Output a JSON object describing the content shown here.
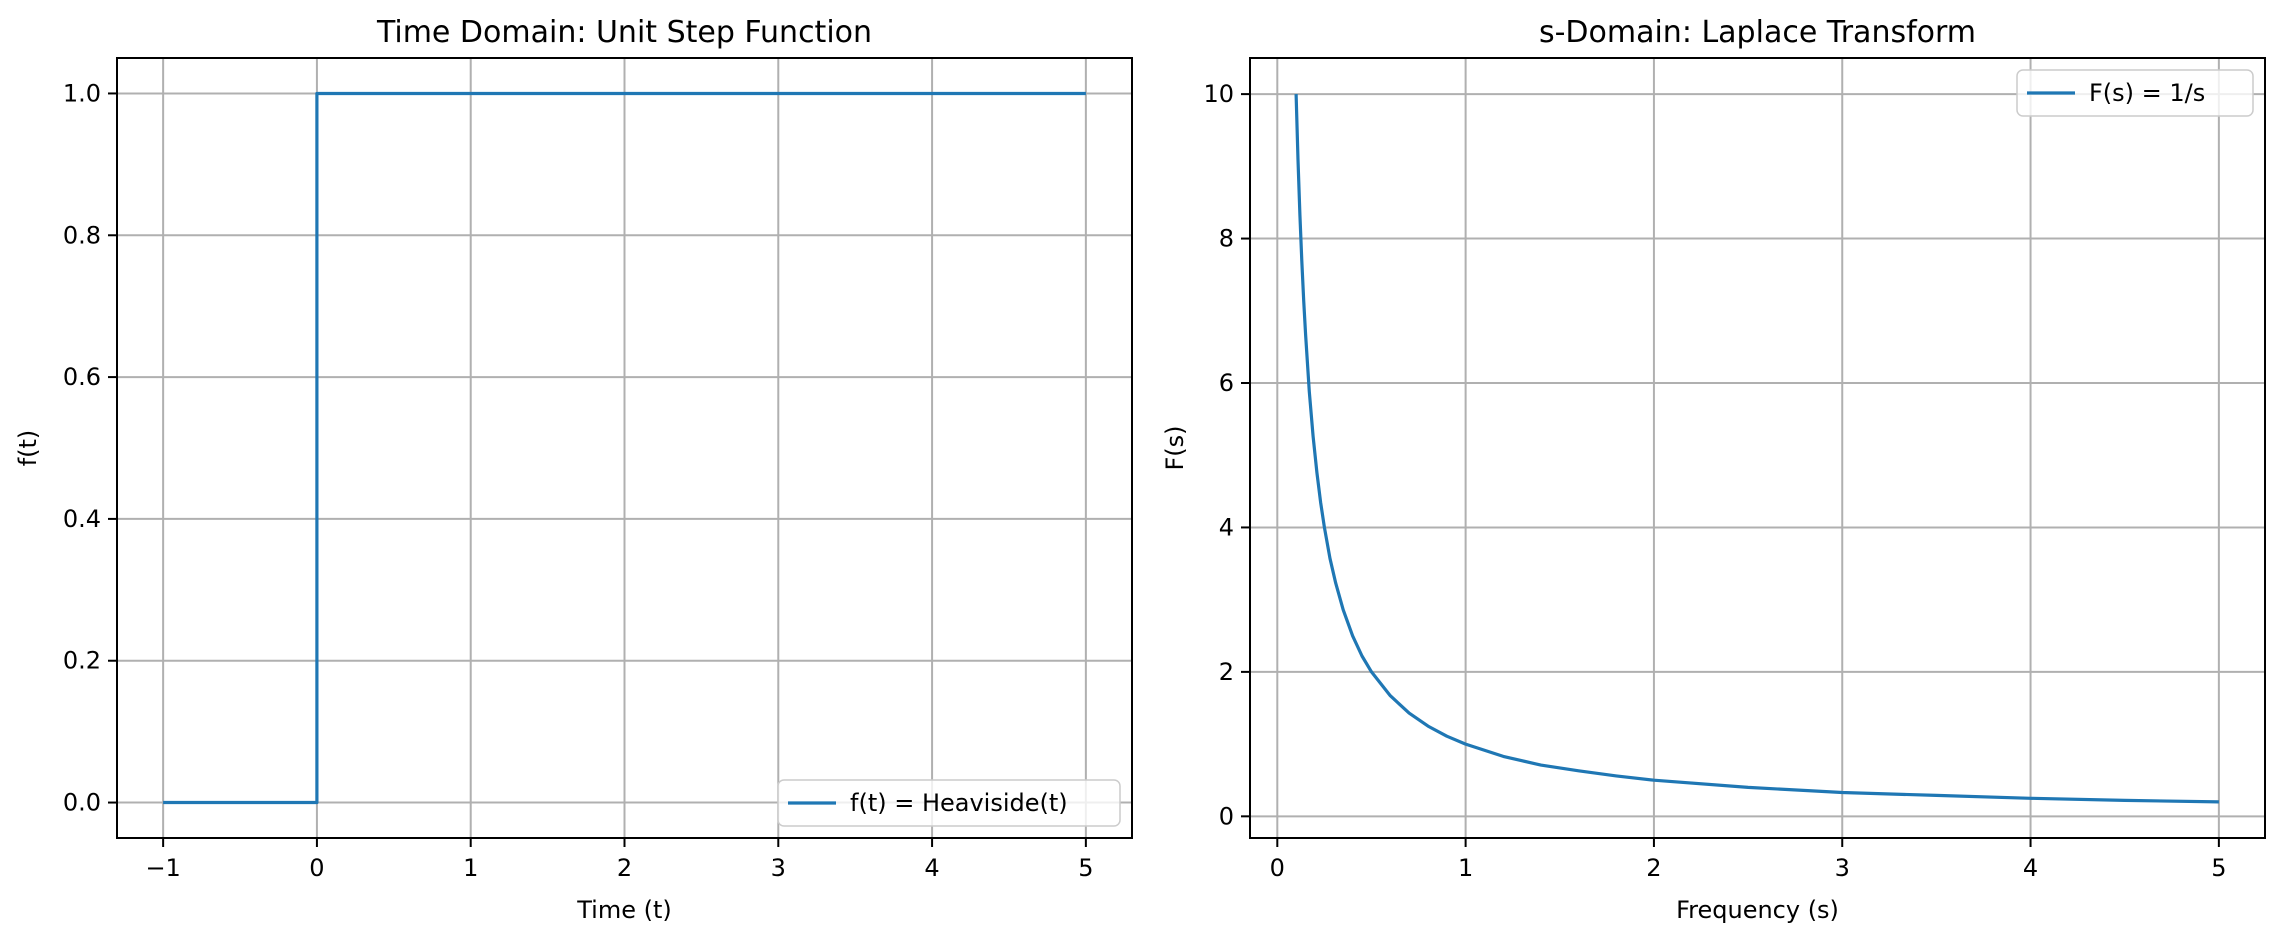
{
  "figure": {
    "background": "#ffffff"
  },
  "chart_data": [
    {
      "type": "line",
      "title": "Time Domain: Unit Step Function",
      "xlabel": "Time (t)",
      "ylabel": "f(t)",
      "xlim": [
        -1.3,
        5.3
      ],
      "ylim": [
        -0.05,
        1.05
      ],
      "xticks": [
        -1,
        0,
        1,
        2,
        3,
        4,
        5
      ],
      "xtick_labels": [
        "−1",
        "0",
        "1",
        "2",
        "3",
        "4",
        "5"
      ],
      "yticks": [
        0.0,
        0.2,
        0.4,
        0.6,
        0.8,
        1.0
      ],
      "ytick_labels": [
        "0.0",
        "0.2",
        "0.4",
        "0.6",
        "0.8",
        "1.0"
      ],
      "grid": true,
      "legend_position": "lower-right",
      "series": [
        {
          "name": "f(t) = Heaviside(t)",
          "color": "#1f77b4",
          "x": [
            -1,
            0,
            0,
            5
          ],
          "y": [
            0,
            0,
            1,
            1
          ]
        }
      ]
    },
    {
      "type": "line",
      "title": "s-Domain: Laplace Transform",
      "xlabel": "Frequency (s)",
      "ylabel": "F(s)",
      "xlim": [
        -0.145,
        5.245
      ],
      "ylim": [
        -0.3,
        10.5
      ],
      "xticks": [
        0,
        1,
        2,
        3,
        4,
        5
      ],
      "xtick_labels": [
        "0",
        "1",
        "2",
        "3",
        "4",
        "5"
      ],
      "yticks": [
        0,
        2,
        4,
        6,
        8,
        10
      ],
      "ytick_labels": [
        "0",
        "2",
        "4",
        "6",
        "8",
        "10"
      ],
      "grid": true,
      "legend_position": "upper-right",
      "series": [
        {
          "name": "F(s) = 1/s",
          "color": "#1f77b4",
          "x": [
            0.1,
            0.11,
            0.12,
            0.13,
            0.14,
            0.15,
            0.17,
            0.19,
            0.21,
            0.23,
            0.25,
            0.28,
            0.31,
            0.35,
            0.4,
            0.45,
            0.5,
            0.6,
            0.7,
            0.8,
            0.9,
            1.0,
            1.2,
            1.4,
            1.6,
            1.8,
            2.0,
            2.5,
            3.0,
            3.5,
            4.0,
            4.5,
            5.0
          ],
          "y": [
            10.0,
            9.09,
            8.33,
            7.69,
            7.14,
            6.67,
            5.88,
            5.26,
            4.76,
            4.35,
            4.0,
            3.57,
            3.23,
            2.86,
            2.5,
            2.22,
            2.0,
            1.67,
            1.43,
            1.25,
            1.11,
            1.0,
            0.83,
            0.71,
            0.63,
            0.56,
            0.5,
            0.4,
            0.33,
            0.29,
            0.25,
            0.22,
            0.2
          ]
        }
      ]
    }
  ]
}
